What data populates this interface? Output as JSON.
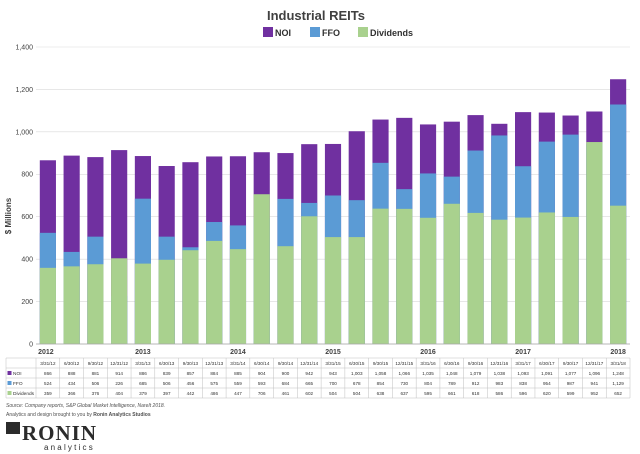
{
  "chart_data": {
    "type": "bar",
    "title": "Industrial REITs",
    "ylabel": "$ Millions",
    "ylim": [
      0,
      1400
    ],
    "yticks": [
      "0",
      "200",
      "400",
      "600",
      "800",
      "1,000",
      "1,200",
      "1,400"
    ],
    "grid": true,
    "legend_position": "top",
    "categories": [
      "3/31/12",
      "6/30/12",
      "9/30/12",
      "12/31/12",
      "3/31/13",
      "6/30/13",
      "9/30/13",
      "12/31/13",
      "3/31/14",
      "6/30/14",
      "9/30/14",
      "12/31/14",
      "3/31/15",
      "6/30/15",
      "9/30/15",
      "12/31/15",
      "3/31/16",
      "6/30/16",
      "9/30/16",
      "12/31/16",
      "3/31/17",
      "6/30/17",
      "9/30/17",
      "12/31/17",
      "3/31/18"
    ],
    "year_labels": [
      {
        "label": "2012",
        "index": 0
      },
      {
        "label": "2013",
        "index": 4
      },
      {
        "label": "2014",
        "index": 8
      },
      {
        "label": "2015",
        "index": 12
      },
      {
        "label": "2016",
        "index": 16
      },
      {
        "label": "2017",
        "index": 20
      },
      {
        "label": "2018",
        "index": 24
      }
    ],
    "series": [
      {
        "name": "NOI",
        "color": "#7030a0",
        "values": [
          866,
          888,
          881,
          914,
          886,
          839,
          857,
          884,
          885,
          904,
          900,
          942,
          943,
          1003,
          1058,
          1066,
          1035,
          1048,
          1079,
          1038,
          1093,
          1091,
          1077,
          1096,
          1248
        ],
        "labels": [
          "866",
          "888",
          "881",
          "914",
          "886",
          "839",
          "857",
          "884",
          "885",
          "904",
          "900",
          "942",
          "943",
          "1,003",
          "1,058",
          "1,066",
          "1,035",
          "1,048",
          "1,079",
          "1,038",
          "1,093",
          "1,091",
          "1,077",
          "1,096",
          "1,248"
        ]
      },
      {
        "name": "FFO",
        "color": "#5b9bd5",
        "values": [
          524,
          434,
          506,
          226,
          685,
          506,
          456,
          575,
          559,
          593,
          684,
          665,
          700,
          678,
          854,
          730,
          804,
          789,
          912,
          983,
          838,
          954,
          987,
          941,
          1129
        ],
        "labels": [
          "524",
          "434",
          "506",
          "226",
          "685",
          "506",
          "456",
          "575",
          "559",
          "593",
          "684",
          "665",
          "700",
          "678",
          "854",
          "730",
          "804",
          "789",
          "912",
          "983",
          "838",
          "954",
          "987",
          "941",
          "1,129"
        ]
      },
      {
        "name": "Dividends",
        "color": "#a9d18e",
        "values": [
          359,
          366,
          376,
          404,
          379,
          397,
          442,
          486,
          447,
          706,
          461,
          602,
          504,
          504,
          638,
          637,
          595,
          661,
          618,
          586,
          596,
          620,
          599,
          952,
          652
        ],
        "labels": [
          "359",
          "366",
          "376",
          "404",
          "379",
          "397",
          "442",
          "486",
          "447",
          "706",
          "461",
          "602",
          "504",
          "504",
          "638",
          "637",
          "595",
          "661",
          "618",
          "586",
          "596",
          "620",
          "599",
          "952",
          "652"
        ]
      }
    ]
  },
  "footer": {
    "source": "Source: Company reports, S&P Global Market Intelligence, NareIt 2018.",
    "credit_prefix": "Analytics and design brought to you by ",
    "credit_name": "Ronin Analytics Studios"
  },
  "logo": {
    "main": "RONIN",
    "sub": "analytics"
  }
}
